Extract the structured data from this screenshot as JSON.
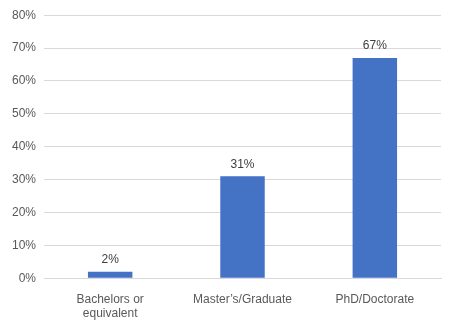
{
  "chart_data": {
    "type": "bar",
    "categories": [
      "Bachelors or equivalent",
      "Master’s/Graduate",
      "PhD/Doctorate"
    ],
    "values": [
      2,
      31,
      67
    ],
    "value_labels": [
      "2%",
      "31%",
      "67%"
    ],
    "data_labels": true,
    "color": "#4472c4",
    "ylim": [
      0,
      80
    ],
    "yticks": [
      {
        "value": 0,
        "label": "0%"
      },
      {
        "value": 10,
        "label": "10%"
      },
      {
        "value": 20,
        "label": "20%"
      },
      {
        "value": 30,
        "label": "30%"
      },
      {
        "value": 40,
        "label": "40%"
      },
      {
        "value": 50,
        "label": "50%"
      },
      {
        "value": 60,
        "label": "60%"
      },
      {
        "value": 70,
        "label": "70%"
      },
      {
        "value": 80,
        "label": "80%"
      }
    ],
    "grid": true
  }
}
